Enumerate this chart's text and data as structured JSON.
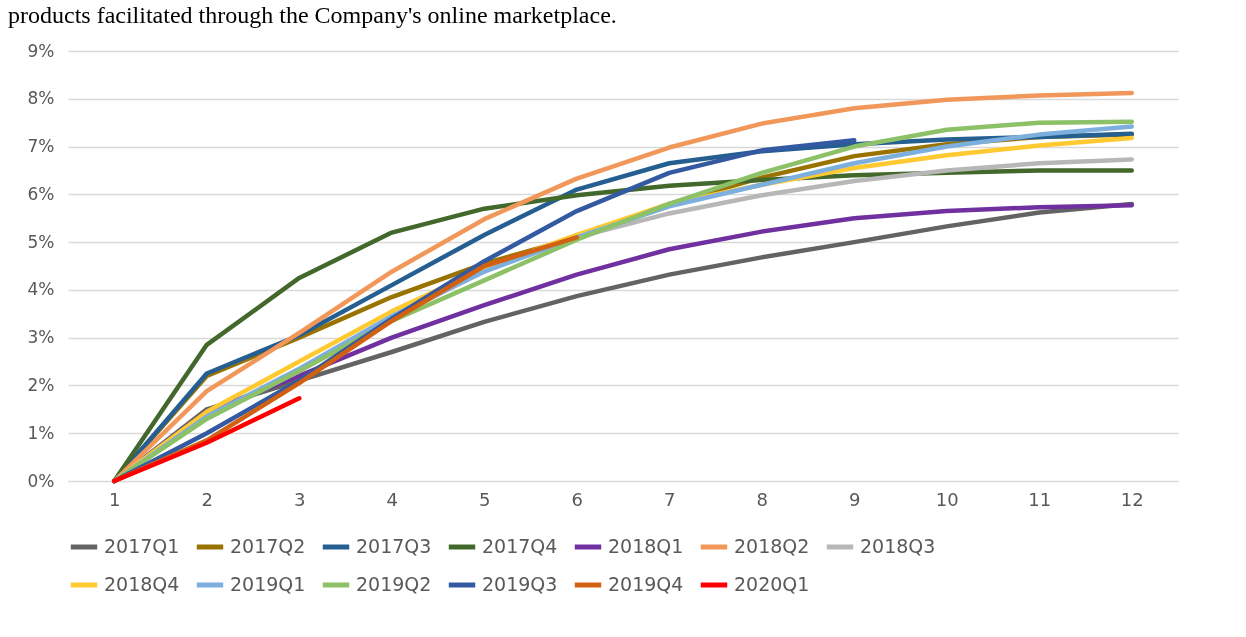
{
  "chart_data": {
    "type": "line",
    "title": "products facilitated through the Company's online marketplace.",
    "x": [
      1,
      2,
      3,
      4,
      5,
      6,
      7,
      8,
      9,
      10,
      11,
      12
    ],
    "xlim": [
      0.5,
      12.5
    ],
    "xticks": [
      1,
      2,
      3,
      4,
      5,
      6,
      7,
      8,
      9,
      10,
      11,
      12
    ],
    "ylim": [
      0,
      9
    ],
    "yticks": [
      {
        "value": 0,
        "label": "0%"
      },
      {
        "value": 1,
        "label": "1%"
      },
      {
        "value": 2,
        "label": "2%"
      },
      {
        "value": 3,
        "label": "3%"
      },
      {
        "value": 4,
        "label": "4%"
      },
      {
        "value": 5,
        "label": "5%"
      },
      {
        "value": 6,
        "label": "6%"
      },
      {
        "value": 7,
        "label": "7%"
      },
      {
        "value": 8,
        "label": "8%"
      },
      {
        "value": 9,
        "label": "9%"
      }
    ],
    "grid": "y",
    "legend": "bottom",
    "marker": "none",
    "line_style": "solid",
    "series": [
      {
        "name": "2017Q1",
        "color": "#636363",
        "values": [
          0,
          1.5,
          2.1,
          2.7,
          3.33,
          3.87,
          4.32,
          4.68,
          5.0,
          5.33,
          5.62,
          5.8
        ]
      },
      {
        "name": "2017Q2",
        "color": "#997300",
        "values": [
          0,
          2.2,
          3.0,
          3.85,
          4.55,
          5.1,
          5.8,
          6.35,
          6.8,
          7.05,
          7.2,
          7.25
        ]
      },
      {
        "name": "2017Q3",
        "color": "#255e91",
        "values": [
          0,
          2.25,
          3.05,
          4.1,
          5.15,
          6.1,
          6.65,
          6.9,
          7.05,
          7.15,
          7.2,
          7.27
        ]
      },
      {
        "name": "2017Q4",
        "color": "#43682b",
        "values": [
          0,
          2.85,
          4.25,
          5.2,
          5.7,
          5.98,
          6.18,
          6.3,
          6.4,
          6.45,
          6.5,
          6.5
        ]
      },
      {
        "name": "2018Q1",
        "color": "#7030a0",
        "values": [
          0,
          1.45,
          2.2,
          3.0,
          3.68,
          4.32,
          4.85,
          5.22,
          5.5,
          5.65,
          5.73,
          5.77
        ]
      },
      {
        "name": "2018Q2",
        "color": "#f1975a",
        "values": [
          0,
          1.88,
          3.1,
          4.38,
          5.48,
          6.33,
          6.98,
          7.48,
          7.8,
          7.98,
          8.07,
          8.12
        ]
      },
      {
        "name": "2018Q3",
        "color": "#b7b7b7",
        "values": [
          0,
          1.35,
          2.3,
          3.4,
          4.4,
          5.1,
          5.6,
          5.98,
          6.28,
          6.5,
          6.65,
          6.73
        ]
      },
      {
        "name": "2018Q4",
        "color": "#ffc931",
        "values": [
          0,
          1.45,
          2.5,
          3.55,
          4.45,
          5.15,
          5.8,
          6.2,
          6.55,
          6.82,
          7.02,
          7.18
        ]
      },
      {
        "name": "2019Q1",
        "color": "#7cafdd",
        "values": [
          0,
          1.35,
          2.35,
          3.45,
          4.38,
          5.1,
          5.75,
          6.2,
          6.65,
          7.0,
          7.25,
          7.42
        ]
      },
      {
        "name": "2019Q2",
        "color": "#8cc168",
        "values": [
          0,
          1.3,
          2.3,
          3.35,
          4.2,
          5.05,
          5.8,
          6.45,
          7.0,
          7.35,
          7.5,
          7.52
        ]
      },
      {
        "name": "2019Q3",
        "color": "#335aa1",
        "values": [
          0,
          1.0,
          2.1,
          3.4,
          4.6,
          5.65,
          6.45,
          6.92,
          7.13,
          null,
          null,
          null
        ]
      },
      {
        "name": "2019Q4",
        "color": "#d26012",
        "values": [
          0,
          0.85,
          2.05,
          3.35,
          4.5,
          5.1,
          null,
          null,
          null,
          null,
          null,
          null
        ]
      },
      {
        "name": "2020Q1",
        "color": "#ff0000",
        "values": [
          0,
          0.8,
          1.73,
          null,
          null,
          null,
          null,
          null,
          null,
          null,
          null,
          null
        ]
      }
    ]
  }
}
